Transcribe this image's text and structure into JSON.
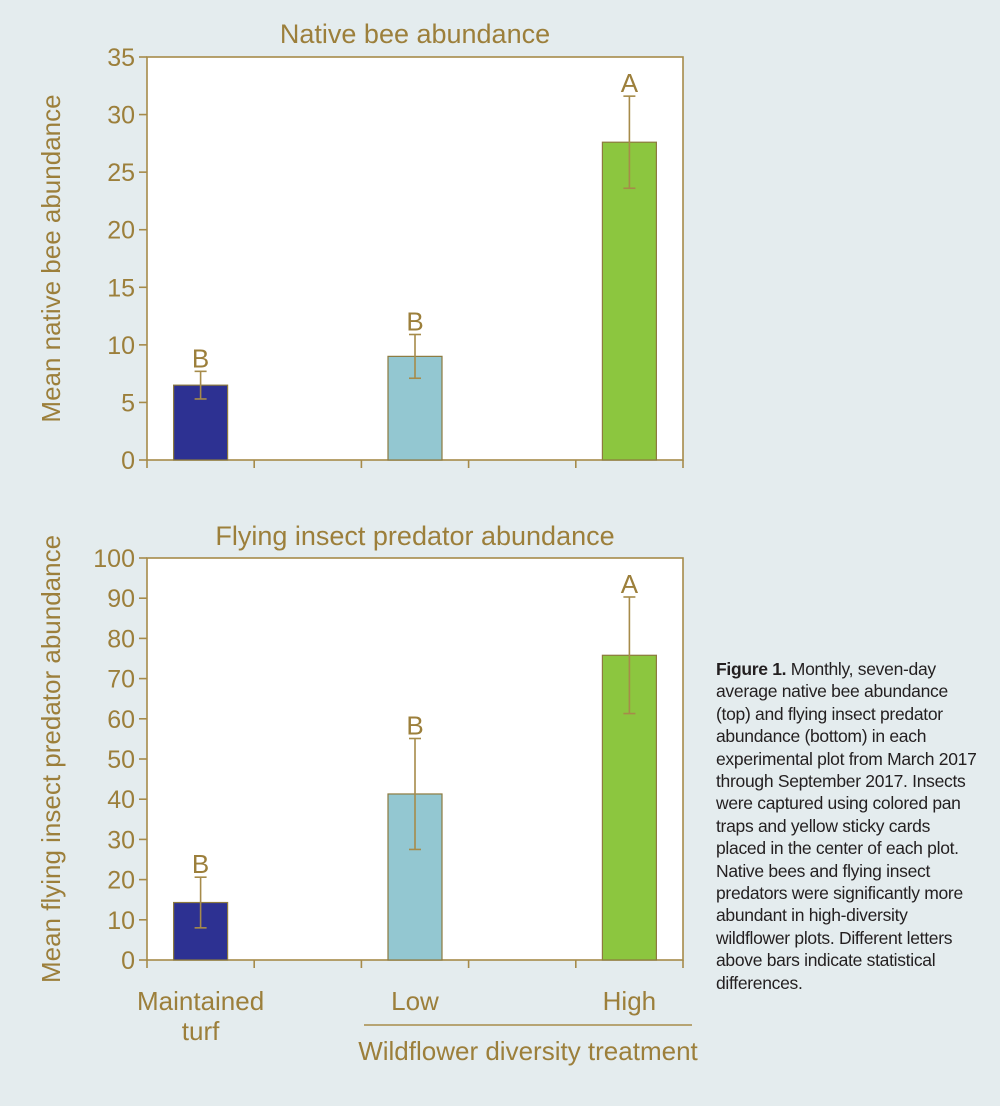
{
  "chart_data": [
    {
      "type": "bar",
      "title": "Native bee abundance",
      "ylabel": "Mean native bee abundance",
      "xlabel": "",
      "ylim": [
        0,
        35
      ],
      "yticks": [
        0,
        5,
        10,
        15,
        20,
        25,
        30,
        35
      ],
      "categories": [
        "Maintained turf",
        "Low",
        "High"
      ],
      "values": [
        6.5,
        9.0,
        27.6
      ],
      "error": [
        1.2,
        1.9,
        4.0
      ],
      "letters": [
        "B",
        "B",
        "A"
      ],
      "colors": [
        "#2d3192",
        "#93c7d1",
        "#8cc63f"
      ],
      "grid": false,
      "legend": "none"
    },
    {
      "type": "bar",
      "title": "Flying insect predator abundance",
      "ylabel": "Mean flying insect predator abundance",
      "xlabel": "Wildflower diversity treatment",
      "ylim": [
        0,
        100
      ],
      "yticks": [
        0,
        10,
        20,
        30,
        40,
        50,
        60,
        70,
        80,
        90,
        100
      ],
      "categories": [
        "Maintained turf",
        "Low",
        "High"
      ],
      "category_lines": [
        [
          "Maintained",
          "turf"
        ],
        [
          "Low"
        ],
        [
          "High"
        ]
      ],
      "values": [
        14.3,
        41.3,
        75.8
      ],
      "error": [
        6.3,
        13.8,
        14.5
      ],
      "letters": [
        "B",
        "B",
        "A"
      ],
      "colors": [
        "#2d3192",
        "#93c7d1",
        "#8cc63f"
      ],
      "grid": false,
      "legend": "none"
    }
  ],
  "colors": {
    "axis": "#a68b4a",
    "text": "#9c7f3b",
    "bar_outline": "#8d7a3f",
    "background": "#e4ecee",
    "plot_background": "#ffffff"
  },
  "caption": {
    "lead": "Figure 1.",
    "text": "Monthly, seven-day average native bee abundance (top) and flying insect predator abundance (bottom) in each experimental plot from March 2017 through September 2017. Insects were captured using colored pan traps and yellow sticky cards placed in the center of each plot. Native bees and flying insect predators were significantly more abundant in high-diversity wildflower plots. Different letters above bars indicate statistical differences."
  }
}
